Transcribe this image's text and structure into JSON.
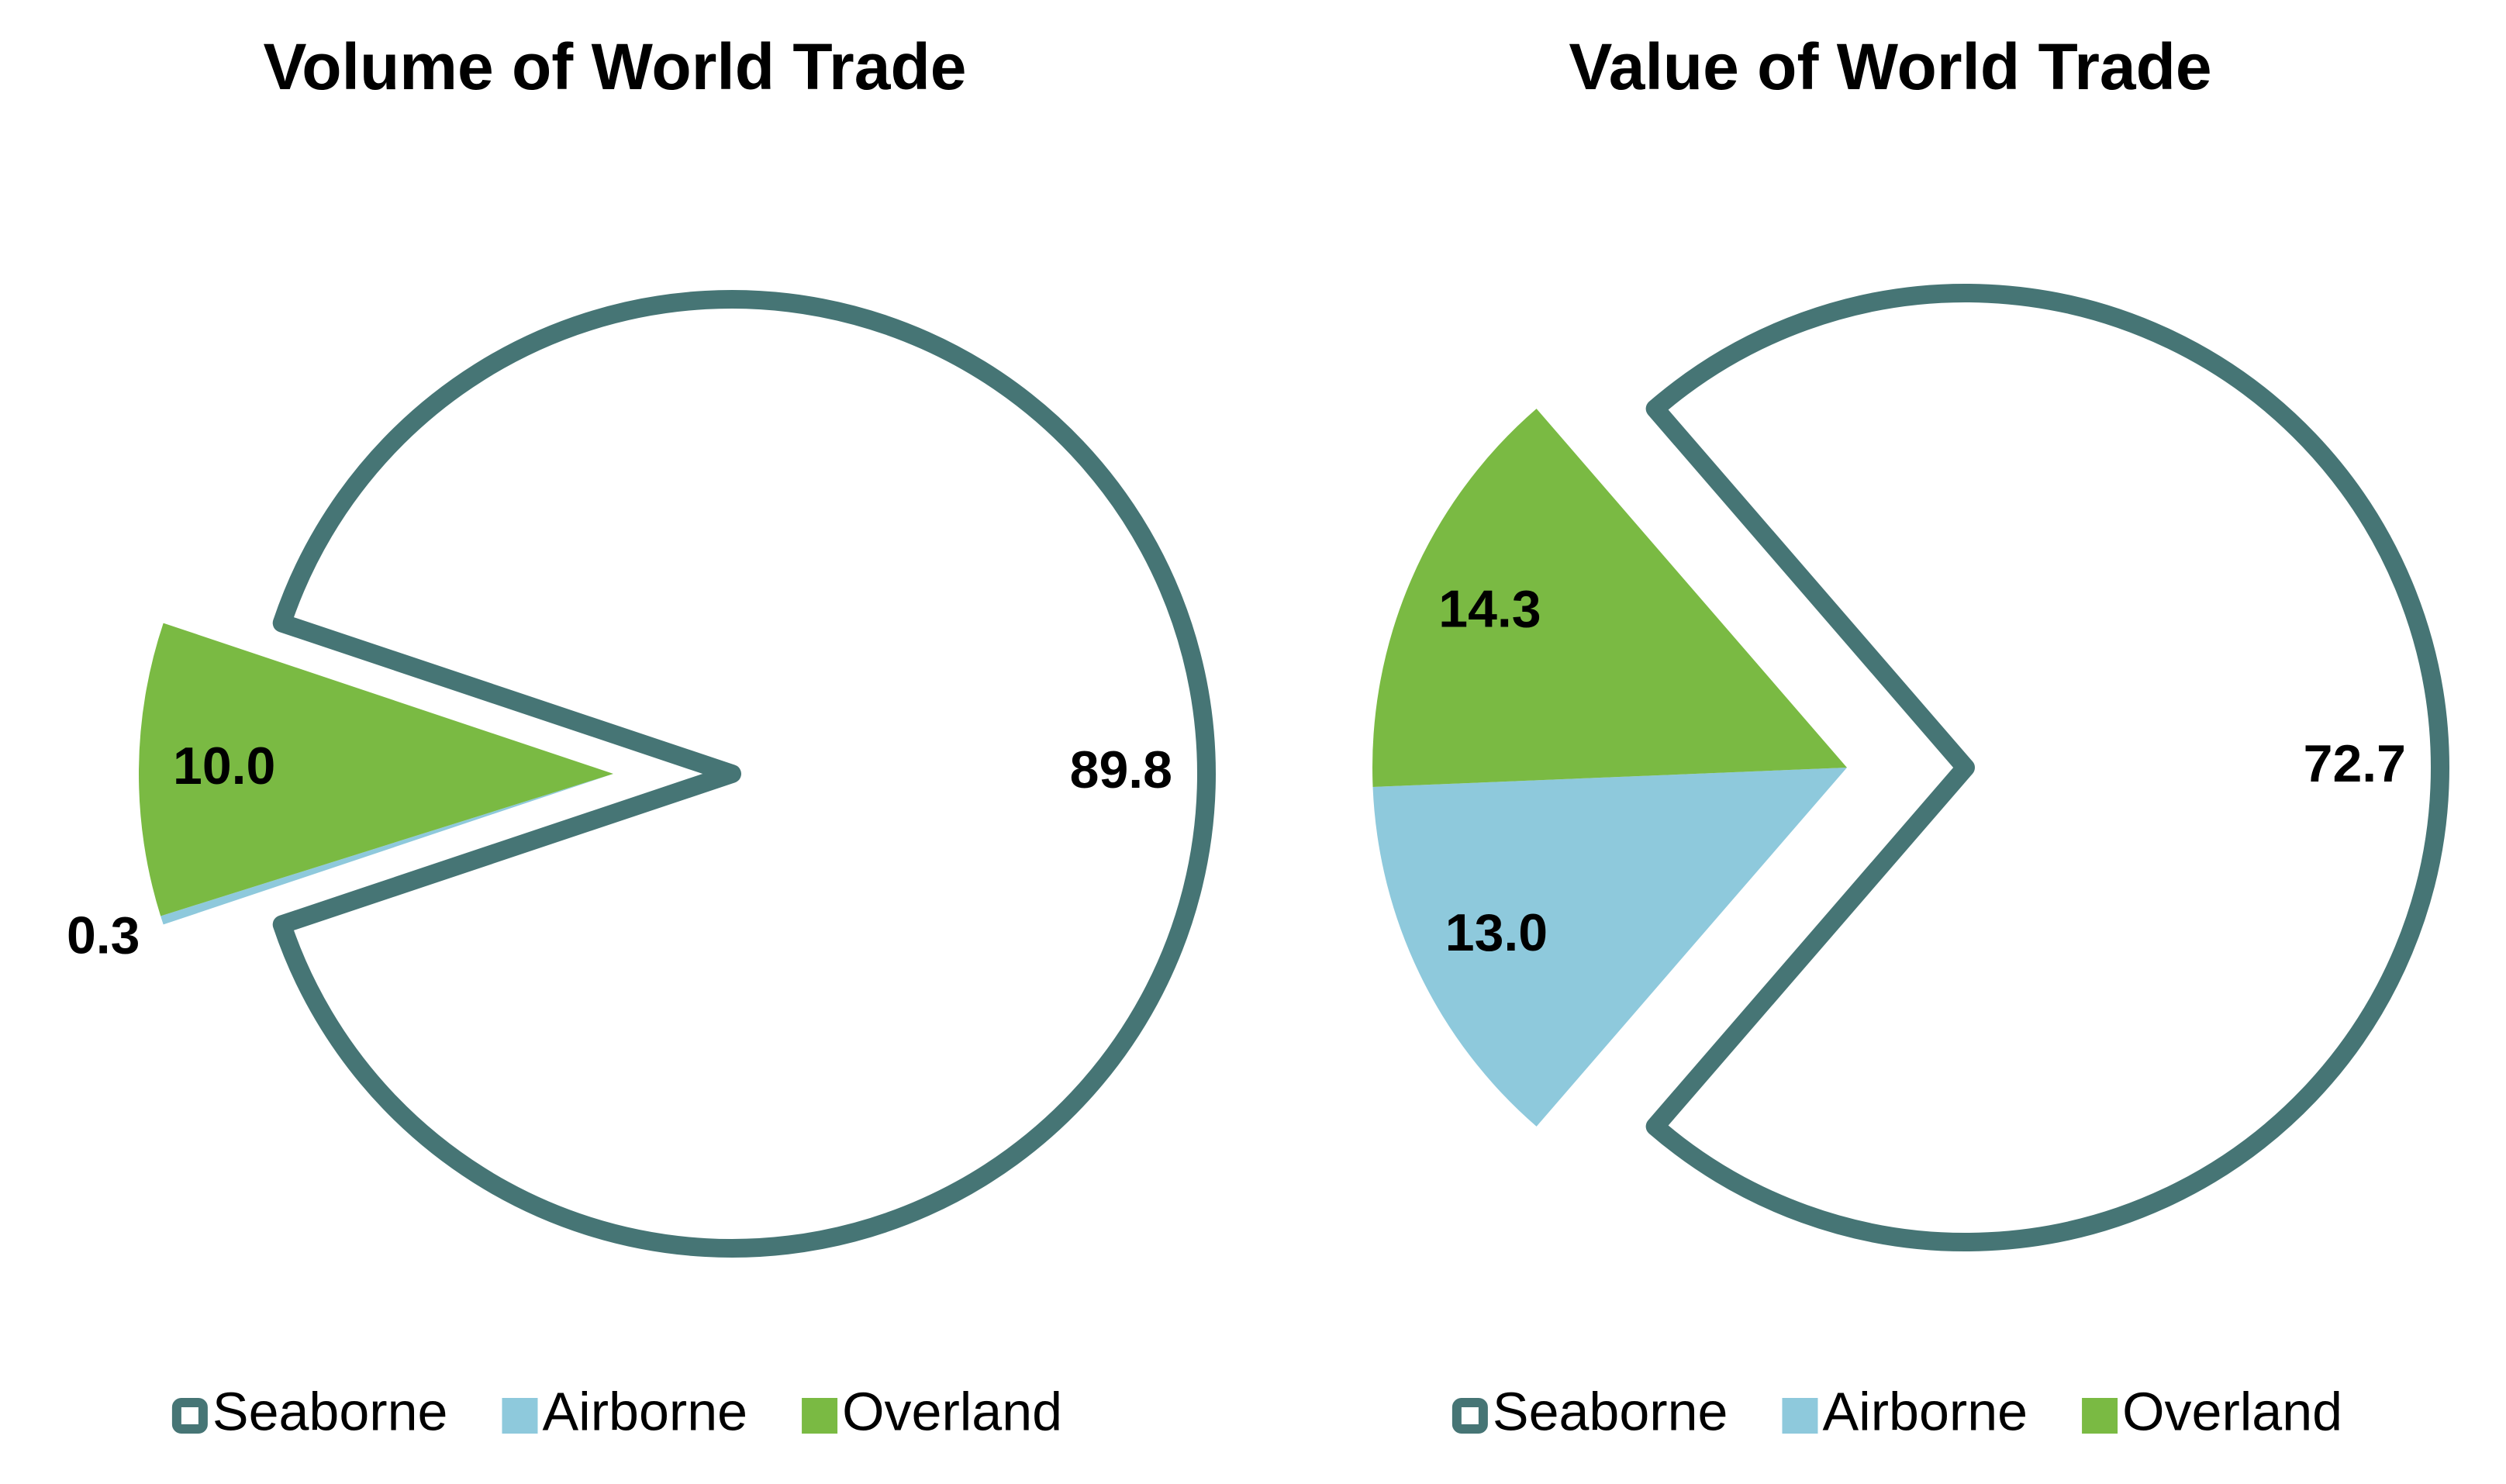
{
  "chart_data": [
    {
      "type": "pie",
      "title": "Volume of World Trade",
      "categories": [
        "Seaborne",
        "Airborne",
        "Overland"
      ],
      "values": [
        89.8,
        0.3,
        10.0
      ],
      "value_labels": [
        "89.8",
        "0.3",
        "10.0"
      ],
      "colors": [
        "#467575",
        "#8ec9dc",
        "#7aba43"
      ],
      "styles": [
        "outline",
        "fill",
        "fill"
      ]
    },
    {
      "type": "pie",
      "title": "Value of World Trade",
      "categories": [
        "Seaborne",
        "Airborne",
        "Overland"
      ],
      "values": [
        72.7,
        13.0,
        14.3
      ],
      "value_labels": [
        "72.7",
        "13.0",
        "14.3"
      ],
      "colors": [
        "#467575",
        "#8ec9dc",
        "#7aba43"
      ],
      "styles": [
        "outline",
        "fill",
        "fill"
      ]
    }
  ]
}
